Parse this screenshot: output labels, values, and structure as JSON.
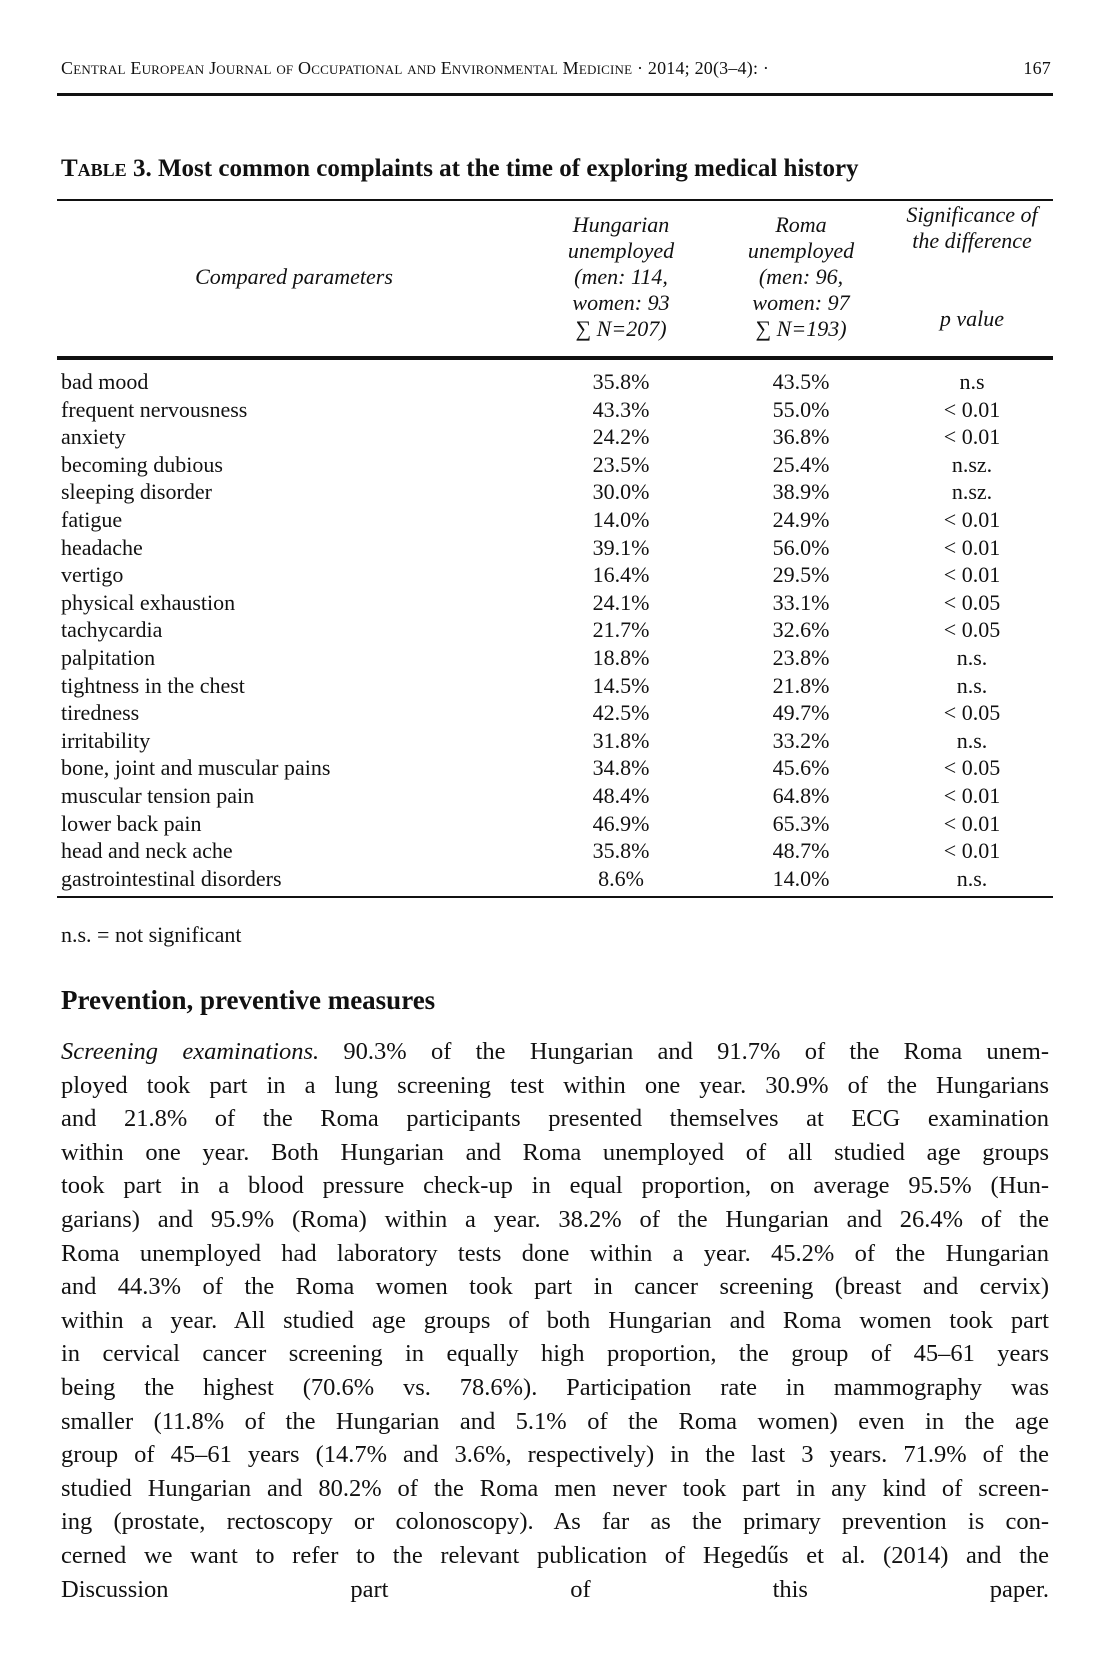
{
  "header": {
    "journal": "Central European Journal of Occupational and Environmental Medicine",
    "citation": "· 2014; 20(3–4):  ·",
    "page": "167"
  },
  "table": {
    "title_prefix": "Table",
    "title_rest": " 3. Most common complaints at the time of exploring medical history",
    "columns": {
      "param": "Compared parameters",
      "hungarian": [
        "Hungarian",
        "unemployed",
        "(men: 114,",
        "women: 93",
        "∑ N=207)"
      ],
      "roma": [
        "Roma",
        "unemployed",
        "(men: 96,",
        "women: 97",
        "∑ N=193)"
      ],
      "significance": [
        "Significance of",
        "the difference",
        "p value"
      ]
    },
    "rows": [
      [
        "bad mood",
        "35.8%",
        "43.5%",
        "n.s"
      ],
      [
        "frequent nervousness",
        "43.3%",
        "55.0%",
        "< 0.01"
      ],
      [
        "anxiety",
        "24.2%",
        "36.8%",
        "< 0.01"
      ],
      [
        "becoming dubious",
        "23.5%",
        "25.4%",
        "n.sz."
      ],
      [
        "sleeping disorder",
        "30.0%",
        "38.9%",
        "n.sz."
      ],
      [
        "fatigue",
        "14.0%",
        "24.9%",
        "< 0.01"
      ],
      [
        "headache",
        "39.1%",
        "56.0%",
        "< 0.01"
      ],
      [
        "vertigo",
        "16.4%",
        "29.5%",
        "< 0.01"
      ],
      [
        "physical exhaustion",
        "24.1%",
        "33.1%",
        "< 0.05"
      ],
      [
        "tachycardia",
        "21.7%",
        "32.6%",
        "< 0.05"
      ],
      [
        "palpitation",
        "18.8%",
        "23.8%",
        "n.s."
      ],
      [
        "tightness in the chest",
        "14.5%",
        "21.8%",
        "n.s."
      ],
      [
        "tiredness",
        "42.5%",
        "49.7%",
        "< 0.05"
      ],
      [
        "irritability",
        "31.8%",
        "33.2%",
        "n.s."
      ],
      [
        "bone, joint and muscular pains",
        "34.8%",
        "45.6%",
        "< 0.05"
      ],
      [
        "muscular tension pain",
        "48.4%",
        "64.8%",
        "< 0.01"
      ],
      [
        "lower back pain",
        "46.9%",
        "65.3%",
        "< 0.01"
      ],
      [
        "head and neck ache",
        "35.8%",
        "48.7%",
        "< 0.01"
      ],
      [
        "gastrointestinal disorders",
        "8.6%",
        "14.0%",
        "n.s."
      ]
    ],
    "note": "n.s. = not significant"
  },
  "section": {
    "heading": "Prevention, preventive measures",
    "lead": "Screening examinations.",
    "lines": [
      " 90.3% of the Hungarian and 91.7% of the Roma unem-",
      "ployed took part in a lung screening test within one year. 30.9% of the Hungarians",
      "and 21.8% of the Roma participants presented themselves at ECG examination",
      "within one year. Both Hungarian and Roma unemployed of all studied age groups",
      "took part in a blood pressure check-up in equal proportion, on average 95.5% (Hun-",
      "garians) and 95.9% (Roma) within a year. 38.2% of the Hungarian and 26.4% of the",
      "Roma unemployed had laboratory tests done within a year. 45.2% of the Hungarian",
      "and 44.3% of the Roma women took part in cancer screening (breast and cervix)",
      "within a year. All studied age groups of both Hungarian and Roma women took part",
      "in cervical cancer screening in equally high proportion, the group of 45–61 years",
      "being the highest (70.6% vs. 78.6%). Participation rate in mammography was",
      "smaller (11.8% of the Hungarian and 5.1% of the Roma women) even in the age",
      "group of 45–61 years (14.7% and 3.6%, respectively) in the last 3 years. 71.9% of the",
      "studied Hungarian and 80.2% of the Roma men never took part in any kind of screen-",
      "ing (prostate, rectoscopy or colonoscopy). As far as the primary prevention is con-",
      "cerned we want to refer to the relevant publication of Hegedűs et al. (2014) and the",
      "Discussion part of this paper."
    ]
  }
}
